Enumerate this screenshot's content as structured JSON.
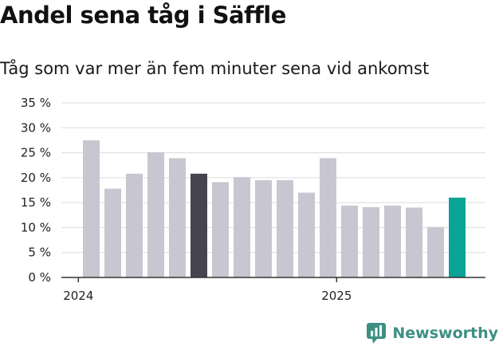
{
  "chart_data": {
    "type": "bar",
    "title": "Andel sena tåg i Säffle",
    "subtitle": "Tåg som var mer än fem minuter sena vid ankomst",
    "ylabel": "",
    "xlabel": "",
    "ylim": [
      0,
      35
    ],
    "y_ticks": [
      "0 %",
      "5 %",
      "10 %",
      "15 %",
      "20 %",
      "25 %",
      "30 %",
      "35 %"
    ],
    "x_ticks": [
      {
        "label": "2024",
        "at_index": -0.6
      },
      {
        "label": "2025",
        "at_index": 11.4
      }
    ],
    "grid": true,
    "values": [
      27.5,
      17.8,
      20.8,
      25.1,
      23.9,
      20.8,
      19.1,
      20.1,
      19.5,
      19.5,
      17.0,
      23.9,
      14.4,
      14.1,
      14.4,
      14.0,
      10.1,
      16.0
    ],
    "highlight": {
      "5": "#46444f",
      "17": "#0aa396"
    },
    "bar_color": "#c8c6d0"
  },
  "brand": {
    "name": "Newsworthy",
    "color": "#3d8f83"
  }
}
